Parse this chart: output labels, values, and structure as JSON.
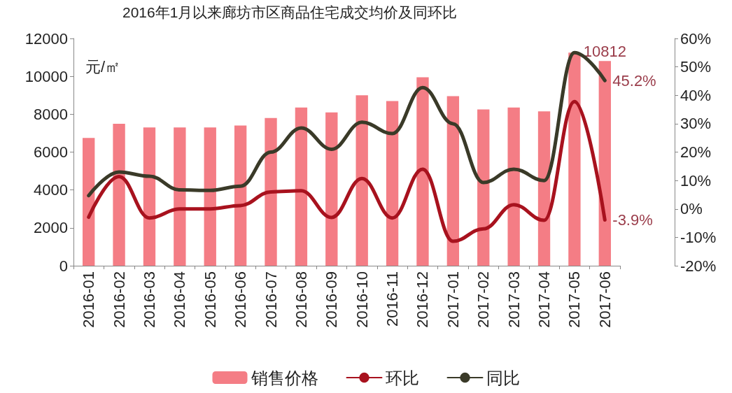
{
  "chart_data": {
    "type": "bar",
    "title": "2016年1月以来廊坊市区商品住宅成交均价及同环比",
    "ylabel": "元/㎡",
    "categories": [
      "2016-01",
      "2016-02",
      "2016-03",
      "2016-04",
      "2016-05",
      "2016-06",
      "2016-07",
      "2016-08",
      "2016-09",
      "2016-10",
      "2016-11",
      "2016-12",
      "2017-01",
      "2017-02",
      "2017-03",
      "2017-04",
      "2017-05",
      "2017-06"
    ],
    "series": [
      {
        "name": "销售价格",
        "color": "#f47d85",
        "values": [
          6750,
          7500,
          7300,
          7300,
          7300,
          7400,
          7800,
          8350,
          8100,
          9000,
          8700,
          9950,
          8950,
          8250,
          8350,
          8150,
          11250,
          10812
        ],
        "value_labels": [
          null,
          null,
          null,
          null,
          null,
          null,
          null,
          null,
          null,
          null,
          null,
          null,
          null,
          null,
          null,
          null,
          null,
          "10812"
        ]
      },
      {
        "name": "环比",
        "type": "line",
        "axis": "y2",
        "color": "#a8121e",
        "values": [
          -2.9,
          11.4,
          -3.2,
          0,
          0,
          1.2,
          6,
          6.4,
          -3,
          10.7,
          -3.2,
          14,
          -11.4,
          -7,
          1.5,
          -4,
          37.8,
          -3.9
        ],
        "value_labels": [
          null,
          null,
          null,
          null,
          null,
          null,
          null,
          null,
          null,
          null,
          null,
          null,
          null,
          null,
          null,
          null,
          null,
          "-3.9%"
        ]
      },
      {
        "name": "同比",
        "type": "line",
        "axis": "y2",
        "color": "#3a3a28",
        "values": [
          4.7,
          13,
          11.5,
          6.7,
          6.5,
          8,
          20,
          28.5,
          21,
          30.5,
          26.5,
          42.7,
          30,
          9.3,
          14,
          10,
          55,
          45.2
        ],
        "value_labels": [
          null,
          null,
          null,
          null,
          null,
          null,
          null,
          null,
          null,
          null,
          null,
          null,
          null,
          null,
          null,
          null,
          null,
          "45.2%"
        ]
      }
    ],
    "ylim": [
      0,
      12000
    ],
    "yticks": [
      0,
      2000,
      4000,
      6000,
      8000,
      10000,
      12000
    ],
    "y2lim": [
      -20,
      60
    ],
    "y2ticks": [
      {
        "value": -20,
        "label": "-20%"
      },
      {
        "value": -10,
        "label": "-10%"
      },
      {
        "value": 0,
        "label": "0%"
      },
      {
        "value": 10,
        "label": "10%"
      },
      {
        "value": 20,
        "label": "20%"
      },
      {
        "value": 30,
        "label": "30%"
      },
      {
        "value": 40,
        "label": "40%"
      },
      {
        "value": 50,
        "label": "50%"
      },
      {
        "value": 60,
        "label": "60%"
      }
    ],
    "grid": false,
    "legend": "bottom",
    "marker": "none",
    "line_style": "solid"
  }
}
